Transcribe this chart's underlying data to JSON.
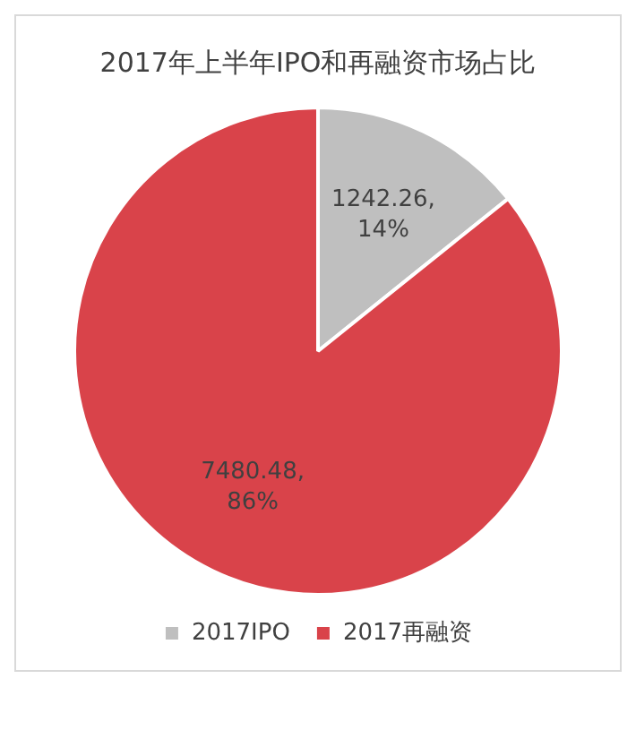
{
  "chart_data": {
    "type": "pie",
    "title": "2017年上半年IPO和再融资市场占比",
    "categories": [
      "2017IPO",
      "2017再融资"
    ],
    "values": [
      1242.26,
      7480.48
    ],
    "colors": [
      "#bfbfbf",
      "#d9434a"
    ],
    "value_labels": [
      "1242.26, 14%",
      "7480.48, 86%"
    ],
    "legend": "bottom"
  }
}
